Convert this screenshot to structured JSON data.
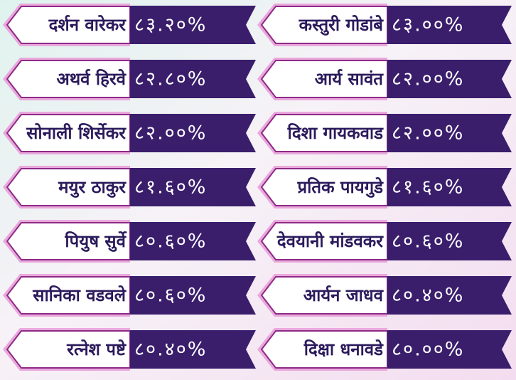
{
  "rows": [
    [
      {
        "name": "दर्शन वारेकर",
        "score": "८३.२०%"
      },
      {
        "name": "कस्तुरी गोडांबे",
        "score": "८३.००%"
      }
    ],
    [
      {
        "name": "अथर्व हिरवे",
        "score": "८२.८०%"
      },
      {
        "name": "आर्य सावंत",
        "score": "८२.००%"
      }
    ],
    [
      {
        "name": "सोनाली शिर्सेकर",
        "score": "८२.००%"
      },
      {
        "name": "दिशा गायकवाड",
        "score": "८२.००%"
      }
    ],
    [
      {
        "name": "मयुर ठाकुर",
        "score": "८१.६०%"
      },
      {
        "name": "प्रतिक पायगुडे",
        "score": "८१.६०%"
      }
    ],
    [
      {
        "name": "पियुष सुर्वे",
        "score": "८०.६०%"
      },
      {
        "name": "देवयानी मांडवकर",
        "score": "८०.६०%"
      }
    ],
    [
      {
        "name": "सानिका वडवले",
        "score": "८०.६०%"
      },
      {
        "name": "आर्यन जाधव",
        "score": "८०.४०%"
      }
    ],
    [
      {
        "name": "रत्नेश पष्टे",
        "score": "८०.४०%"
      },
      {
        "name": "दिक्षा धनावडे",
        "score": "८०.००%"
      }
    ]
  ]
}
